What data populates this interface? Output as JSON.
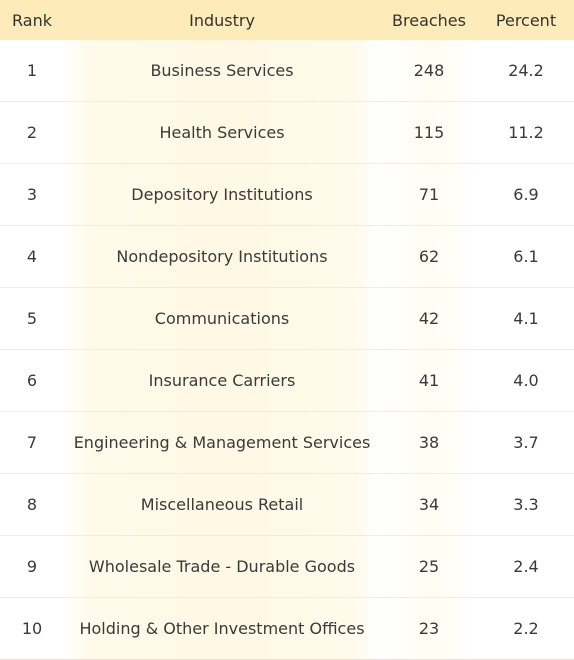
{
  "chart_data": {
    "type": "table",
    "columns": [
      "Rank",
      "Industry",
      "Breaches",
      "Percent"
    ],
    "rows": [
      {
        "rank": "1",
        "industry": "Business Services",
        "breaches": "248",
        "percent": "24.2"
      },
      {
        "rank": "2",
        "industry": "Health Services",
        "breaches": "115",
        "percent": "11.2"
      },
      {
        "rank": "3",
        "industry": "Depository Institutions",
        "breaches": "71",
        "percent": "6.9"
      },
      {
        "rank": "4",
        "industry": "Nondepository Institutions",
        "breaches": "62",
        "percent": "6.1"
      },
      {
        "rank": "5",
        "industry": "Communications",
        "breaches": "42",
        "percent": "4.1"
      },
      {
        "rank": "6",
        "industry": "Insurance Carriers",
        "breaches": "41",
        "percent": "4.0"
      },
      {
        "rank": "7",
        "industry": "Engineering & Management Services",
        "breaches": "38",
        "percent": "3.7"
      },
      {
        "rank": "8",
        "industry": "Miscellaneous Retail",
        "breaches": "34",
        "percent": "3.3"
      },
      {
        "rank": "9",
        "industry": "Wholesale Trade - Durable Goods",
        "breaches": "25",
        "percent": "2.4"
      },
      {
        "rank": "10",
        "industry": "Holding & Other Investment Offices",
        "breaches": "23",
        "percent": "2.2"
      }
    ]
  },
  "colors": {
    "header_bg": "#fdebb9",
    "highlight_bg": "#fff8e4",
    "row_border": "#f7ecd0",
    "text": "#3a3a3a"
  }
}
